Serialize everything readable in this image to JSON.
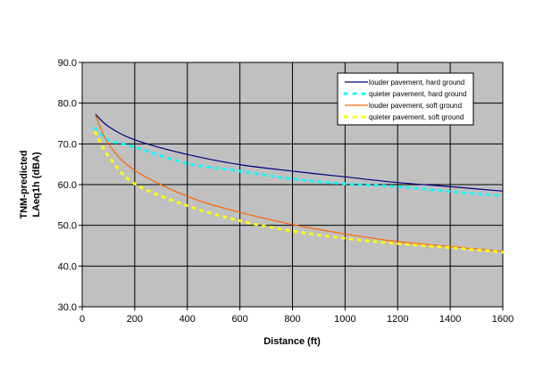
{
  "chart_data": {
    "type": "line",
    "xlabel": "Distance (ft)",
    "ylabel_lines": [
      "TNM-predicted",
      "LAeq1h (dBA)"
    ],
    "xlim": [
      0,
      1600
    ],
    "ylim": [
      30,
      90
    ],
    "x_ticks": [
      "0",
      "200",
      "400",
      "600",
      "800",
      "1000",
      "1200",
      "1400",
      "1600"
    ],
    "y_ticks": [
      "30.0",
      "40.0",
      "50.0",
      "60.0",
      "70.0",
      "80.0",
      "90.0"
    ],
    "x_tick_values": [
      0,
      200,
      400,
      600,
      800,
      1000,
      1200,
      1400,
      1600
    ],
    "y_tick_values": [
      30,
      40,
      50,
      60,
      70,
      80,
      90
    ],
    "grid": true,
    "plot_background": "#c0c0c0",
    "legend_position": "top-right",
    "x": [
      50,
      100,
      200,
      400,
      600,
      800,
      1000,
      1200,
      1400,
      1600
    ],
    "series": [
      {
        "name": "louder pavement, hard ground",
        "color": "#000080",
        "style": "solid",
        "values": [
          77.3,
          74.3,
          71.0,
          67.4,
          64.9,
          63.3,
          61.9,
          60.5,
          59.5,
          58.4
        ]
      },
      {
        "name": "quieter pavement, hard ground",
        "color": "#00ffff",
        "style": "dotted",
        "values": [
          73.8,
          71.0,
          69.2,
          65.2,
          63.3,
          61.4,
          60.2,
          59.5,
          58.3,
          57.2
        ]
      },
      {
        "name": "louder pavement, soft ground",
        "color": "#ff6600",
        "style": "solid",
        "values": [
          77.2,
          70.0,
          63.5,
          57.1,
          53.2,
          50.2,
          47.9,
          46.0,
          44.8,
          43.6
        ]
      },
      {
        "name": "quieter pavement, soft ground",
        "color": "#ffff00",
        "style": "dotted",
        "values": [
          72.8,
          67.0,
          60.2,
          54.8,
          51.1,
          48.6,
          46.8,
          45.5,
          44.5,
          43.4
        ]
      }
    ]
  }
}
